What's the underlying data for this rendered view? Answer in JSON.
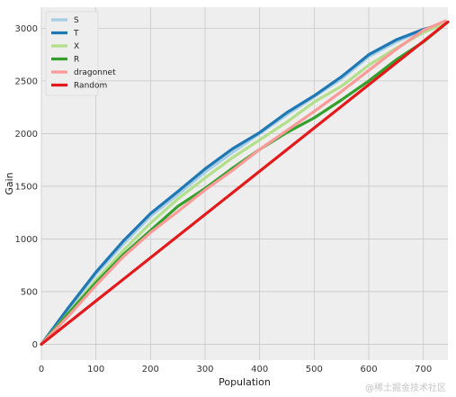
{
  "chart_data": {
    "type": "line",
    "xlabel": "Population",
    "ylabel": "Gain",
    "xlim": [
      0,
      745
    ],
    "ylim": [
      -150,
      3200
    ],
    "xticks": [
      0,
      100,
      200,
      300,
      400,
      500,
      600,
      700
    ],
    "yticks": [
      0,
      500,
      1000,
      1500,
      2000,
      2500,
      3000
    ],
    "grid": true,
    "legend_position": "top-left",
    "series": [
      {
        "name": "S",
        "color": "#a6cee3",
        "x": [
          0,
          50,
          100,
          150,
          200,
          250,
          300,
          350,
          400,
          450,
          500,
          550,
          600,
          650,
          700,
          740
        ],
        "y": [
          0,
          335,
          665,
          950,
          1215,
          1420,
          1635,
          1820,
          2000,
          2180,
          2350,
          2520,
          2730,
          2870,
          2985,
          3050
        ]
      },
      {
        "name": "T",
        "color": "#1f78b4",
        "x": [
          0,
          50,
          100,
          150,
          200,
          250,
          300,
          350,
          400,
          450,
          500,
          550,
          600,
          650,
          700,
          740
        ],
        "y": [
          0,
          350,
          685,
          980,
          1240,
          1450,
          1665,
          1855,
          2010,
          2200,
          2360,
          2540,
          2750,
          2890,
          2990,
          3050
        ]
      },
      {
        "name": "X",
        "color": "#b2df8a",
        "x": [
          0,
          50,
          100,
          150,
          200,
          250,
          300,
          350,
          400,
          450,
          500,
          550,
          600,
          650,
          700,
          740
        ],
        "y": [
          0,
          300,
          610,
          890,
          1150,
          1380,
          1580,
          1770,
          1940,
          2110,
          2300,
          2450,
          2650,
          2810,
          2960,
          3050
        ]
      },
      {
        "name": "R",
        "color": "#33a02c",
        "x": [
          0,
          50,
          100,
          150,
          200,
          250,
          300,
          350,
          400,
          450,
          500,
          550,
          600,
          650,
          700,
          740
        ],
        "y": [
          0,
          295,
          585,
          850,
          1080,
          1310,
          1480,
          1670,
          1850,
          2010,
          2150,
          2320,
          2500,
          2700,
          2870,
          3040
        ]
      },
      {
        "name": "dragonnet",
        "color": "#fb9a99",
        "x": [
          0,
          50,
          100,
          150,
          200,
          250,
          300,
          350,
          400,
          450,
          500,
          550,
          600,
          650,
          700,
          740
        ],
        "y": [
          0,
          270,
          560,
          830,
          1060,
          1260,
          1465,
          1650,
          1850,
          2030,
          2210,
          2400,
          2600,
          2800,
          2980,
          3070
        ]
      },
      {
        "name": "Random",
        "color": "#e31a1c",
        "x": [
          0,
          745
        ],
        "y": [
          0,
          3060
        ]
      }
    ]
  },
  "watermark": "@稀土掘金技术社区"
}
